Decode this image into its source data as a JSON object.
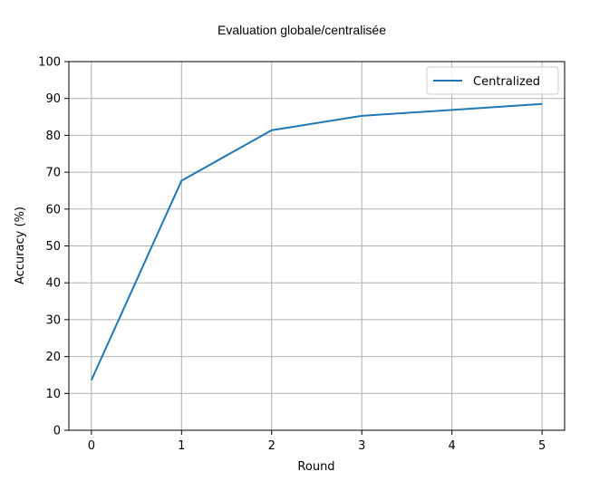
{
  "chart_data": {
    "type": "line",
    "title": "Evaluation globale/centralisée",
    "xlabel": "Round",
    "ylabel": "Accuracy (%)",
    "x": [
      0,
      1,
      2,
      3,
      4,
      5
    ],
    "series": [
      {
        "name": "Centralized",
        "color": "#1f77b4",
        "values": [
          13.6,
          67.7,
          81.4,
          85.3,
          86.9,
          88.5
        ]
      }
    ],
    "xlim": [
      -0.25,
      5.25
    ],
    "ylim": [
      0,
      100
    ],
    "xticks": [
      "0",
      "1",
      "2",
      "3",
      "4",
      "5"
    ],
    "yticks": [
      "0",
      "10",
      "20",
      "30",
      "40",
      "50",
      "60",
      "70",
      "80",
      "90",
      "100"
    ],
    "grid": true,
    "legend": "top-right"
  }
}
